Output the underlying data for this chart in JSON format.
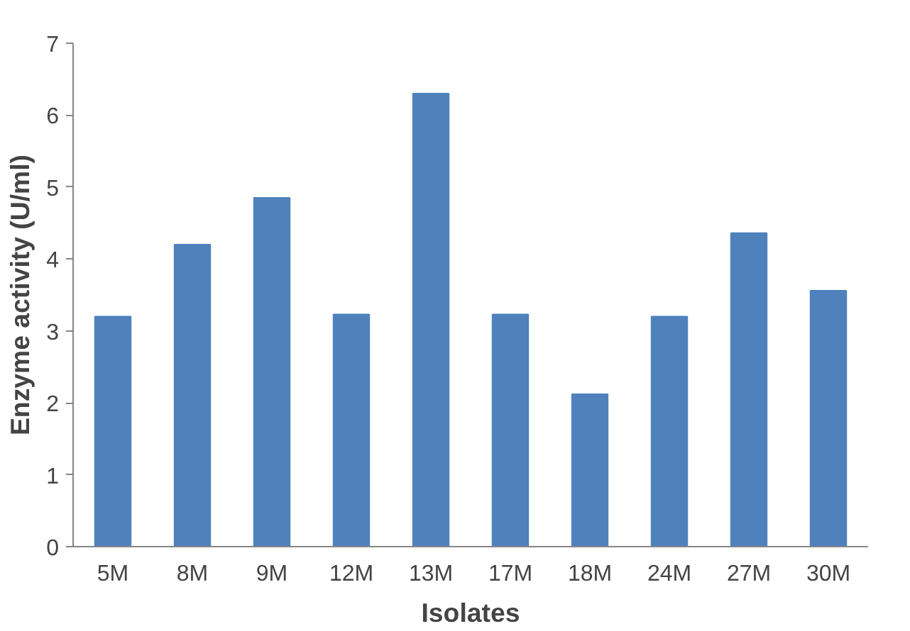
{
  "chart_data": {
    "type": "bar",
    "xlabel": "Isolates",
    "ylabel": "Enzyme activity (U/ml)",
    "categories": [
      "5M",
      "8M",
      "9M",
      "12M",
      "13M",
      "17M",
      "18M",
      "24M",
      "27M",
      "30M"
    ],
    "values": [
      3.2,
      4.2,
      4.85,
      3.23,
      6.3,
      3.23,
      2.12,
      3.2,
      4.36,
      3.56
    ],
    "color": "#4f81bd",
    "ylim": [
      0,
      7
    ],
    "yticks": [
      0,
      1,
      2,
      3,
      4,
      5,
      6,
      7
    ],
    "grid": false
  }
}
